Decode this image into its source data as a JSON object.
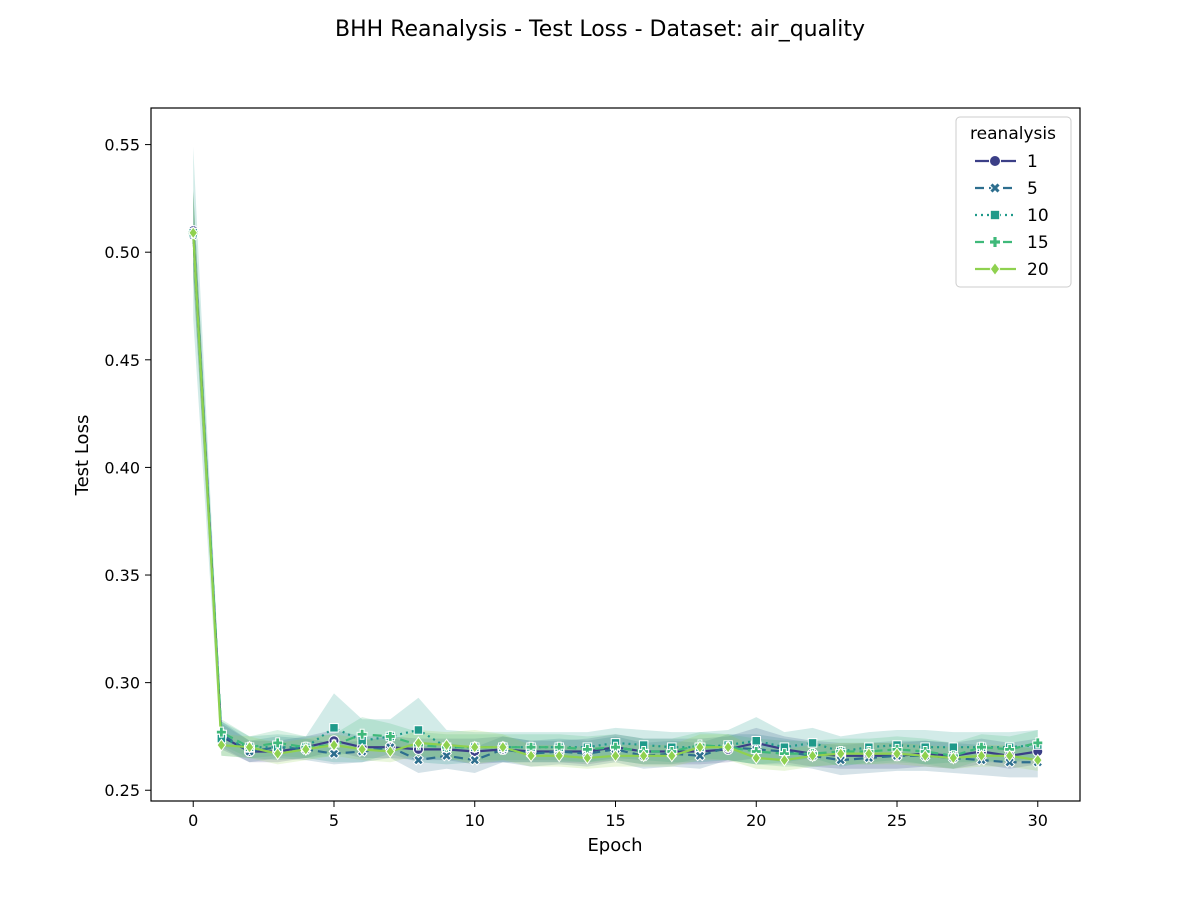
{
  "chart_data": {
    "type": "line",
    "title": "BHH Reanalysis - Test Loss - Dataset: air_quality",
    "xlabel": "Epoch",
    "ylabel": "Test Loss",
    "xlim": [
      -1.5,
      31.5
    ],
    "ylim": [
      0.245,
      0.567
    ],
    "xticks": [
      0,
      5,
      10,
      15,
      20,
      25,
      30
    ],
    "yticks": [
      0.25,
      0.3,
      0.35,
      0.4,
      0.45,
      0.5,
      0.55
    ],
    "grid": false,
    "legend": {
      "title": "reanalysis",
      "placement": "top-right"
    },
    "x": [
      0,
      1,
      2,
      3,
      4,
      5,
      6,
      7,
      8,
      9,
      10,
      11,
      12,
      13,
      14,
      15,
      16,
      17,
      18,
      19,
      20,
      21,
      22,
      23,
      24,
      25,
      26,
      27,
      28,
      29,
      30
    ],
    "series": [
      {
        "name": "1",
        "color": "#3b3f87",
        "marker": "circle",
        "dash": "solid",
        "values": [
          0.51,
          0.275,
          0.268,
          0.268,
          0.27,
          0.273,
          0.27,
          0.27,
          0.269,
          0.269,
          0.268,
          0.269,
          0.268,
          0.268,
          0.268,
          0.27,
          0.268,
          0.268,
          0.268,
          0.269,
          0.272,
          0.269,
          0.267,
          0.266,
          0.266,
          0.266,
          0.267,
          0.266,
          0.268,
          0.266,
          0.268
        ],
        "band": [
          0.018,
          0.006,
          0.005,
          0.005,
          0.005,
          0.005,
          0.005,
          0.005,
          0.005,
          0.005,
          0.006,
          0.006,
          0.005,
          0.005,
          0.006,
          0.006,
          0.006,
          0.006,
          0.006,
          0.006,
          0.007,
          0.006,
          0.006,
          0.006,
          0.006,
          0.006,
          0.006,
          0.006,
          0.006,
          0.006,
          0.006
        ]
      },
      {
        "name": "5",
        "color": "#2d6e8e",
        "marker": "x",
        "dash": "dashed",
        "values": [
          0.508,
          0.276,
          0.268,
          0.27,
          0.269,
          0.267,
          0.268,
          0.27,
          0.264,
          0.266,
          0.264,
          0.269,
          0.267,
          0.268,
          0.267,
          0.269,
          0.266,
          0.267,
          0.266,
          0.27,
          0.269,
          0.268,
          0.266,
          0.264,
          0.265,
          0.266,
          0.266,
          0.265,
          0.264,
          0.263,
          0.263
        ],
        "band": [
          0.02,
          0.006,
          0.005,
          0.005,
          0.005,
          0.005,
          0.005,
          0.005,
          0.006,
          0.006,
          0.006,
          0.006,
          0.006,
          0.006,
          0.006,
          0.006,
          0.006,
          0.006,
          0.006,
          0.006,
          0.007,
          0.006,
          0.006,
          0.007,
          0.007,
          0.007,
          0.007,
          0.007,
          0.007,
          0.007,
          0.007
        ]
      },
      {
        "name": "10",
        "color": "#1f9a8a",
        "marker": "square",
        "dash": "dotted",
        "values": [
          0.509,
          0.274,
          0.27,
          0.27,
          0.27,
          0.279,
          0.273,
          0.275,
          0.278,
          0.27,
          0.27,
          0.27,
          0.27,
          0.27,
          0.27,
          0.272,
          0.271,
          0.27,
          0.27,
          0.271,
          0.273,
          0.27,
          0.272,
          0.268,
          0.27,
          0.271,
          0.27,
          0.27,
          0.27,
          0.27,
          0.271
        ],
        "band": [
          0.04,
          0.008,
          0.005,
          0.006,
          0.005,
          0.016,
          0.01,
          0.008,
          0.015,
          0.008,
          0.007,
          0.007,
          0.007,
          0.007,
          0.007,
          0.007,
          0.007,
          0.007,
          0.007,
          0.007,
          0.011,
          0.007,
          0.007,
          0.007,
          0.007,
          0.007,
          0.008,
          0.007,
          0.007,
          0.007,
          0.007
        ]
      },
      {
        "name": "15",
        "color": "#3fb97a",
        "marker": "plus",
        "dash": "dashed",
        "values": [
          0.509,
          0.277,
          0.27,
          0.272,
          0.27,
          0.271,
          0.276,
          0.275,
          0.271,
          0.27,
          0.27,
          0.27,
          0.27,
          0.27,
          0.269,
          0.27,
          0.268,
          0.268,
          0.271,
          0.27,
          0.268,
          0.267,
          0.267,
          0.268,
          0.268,
          0.269,
          0.268,
          0.266,
          0.27,
          0.269,
          0.272
        ],
        "band": [
          0.02,
          0.006,
          0.005,
          0.006,
          0.005,
          0.005,
          0.008,
          0.006,
          0.006,
          0.006,
          0.006,
          0.006,
          0.006,
          0.006,
          0.006,
          0.006,
          0.006,
          0.006,
          0.006,
          0.006,
          0.006,
          0.006,
          0.006,
          0.006,
          0.006,
          0.006,
          0.006,
          0.006,
          0.006,
          0.006,
          0.006
        ]
      },
      {
        "name": "20",
        "color": "#8fd14f",
        "marker": "diamond",
        "dash": "solid",
        "values": [
          0.509,
          0.271,
          0.27,
          0.267,
          0.269,
          0.271,
          0.269,
          0.268,
          0.272,
          0.271,
          0.27,
          0.27,
          0.266,
          0.266,
          0.265,
          0.266,
          0.266,
          0.266,
          0.27,
          0.27,
          0.265,
          0.264,
          0.266,
          0.267,
          0.267,
          0.267,
          0.266,
          0.265,
          0.266,
          0.266,
          0.264
        ],
        "band": [
          0.02,
          0.005,
          0.005,
          0.005,
          0.005,
          0.005,
          0.005,
          0.005,
          0.006,
          0.006,
          0.008,
          0.006,
          0.005,
          0.005,
          0.005,
          0.005,
          0.005,
          0.005,
          0.006,
          0.006,
          0.005,
          0.005,
          0.005,
          0.005,
          0.005,
          0.005,
          0.005,
          0.005,
          0.005,
          0.005,
          0.005
        ]
      }
    ]
  }
}
